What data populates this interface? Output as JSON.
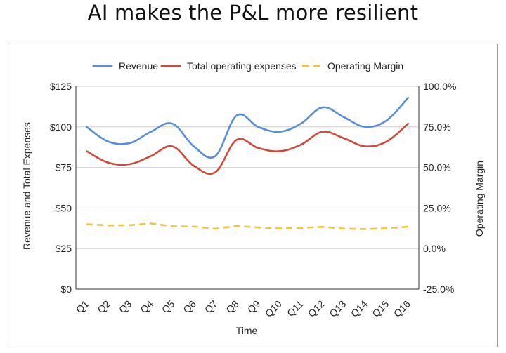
{
  "title": "AI makes the P&L more resilient",
  "colors": {
    "revenue": "#5a8fd8",
    "expenses": "#cf4a3c",
    "margin": "#f0c542",
    "grid": "#cfcfcf",
    "axis": "#333333"
  },
  "chart_data": {
    "type": "line",
    "title": "",
    "xlabel": "Time",
    "ylabel": "Revenue and Total Expenses",
    "ylabel_right": "Operating Margin",
    "categories": [
      "Q1",
      "Q2",
      "Q3",
      "Q4",
      "Q5",
      "Q6",
      "Q7",
      "Q8",
      "Q9",
      "Q10",
      "Q11",
      "Q12",
      "Q13",
      "Q14",
      "Q15",
      "Q16"
    ],
    "ylim": [
      0,
      125
    ],
    "yticks": [
      0,
      25,
      50,
      75,
      100,
      125
    ],
    "ytick_labels": [
      "$0",
      "$25",
      "$50",
      "$75",
      "$100",
      "$125"
    ],
    "ylim_right": [
      -0.25,
      1.0
    ],
    "yticks_right_labels": [
      "-25.0%",
      "0.0%",
      "25.0%",
      "50.0%",
      "75.0%",
      "100.0%"
    ],
    "grid": "horizontal",
    "legend_position": "top",
    "series": [
      {
        "name": "Revenue",
        "axis": "left",
        "style": "solid",
        "values": [
          100,
          91,
          90,
          97,
          102,
          88,
          82,
          107,
          100,
          97,
          102,
          112,
          106,
          100,
          104,
          118
        ]
      },
      {
        "name": "Total operating expenses",
        "axis": "left",
        "style": "solid",
        "values": [
          85,
          78,
          77,
          82,
          88,
          76,
          72,
          92,
          87,
          85,
          89,
          97,
          93,
          88,
          91,
          102
        ]
      },
      {
        "name": "Operating Margin",
        "axis": "right",
        "style": "dashed",
        "values": [
          0.15,
          0.143,
          0.144,
          0.155,
          0.137,
          0.136,
          0.122,
          0.14,
          0.13,
          0.124,
          0.127,
          0.134,
          0.123,
          0.12,
          0.125,
          0.135
        ]
      }
    ]
  }
}
